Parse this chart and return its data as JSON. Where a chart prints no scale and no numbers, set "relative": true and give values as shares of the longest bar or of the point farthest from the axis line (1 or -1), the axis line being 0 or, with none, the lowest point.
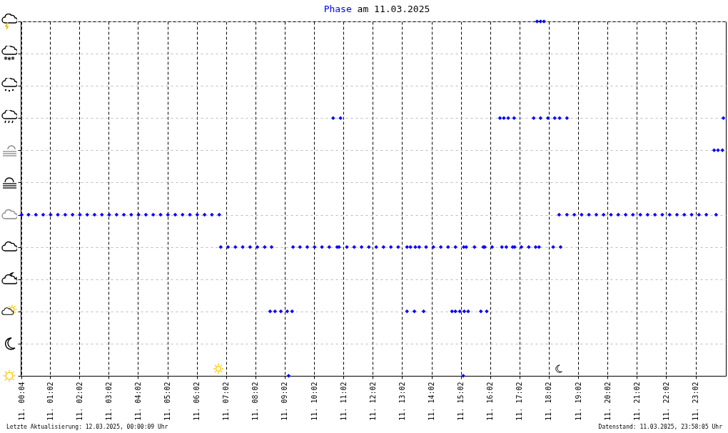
{
  "chart_data": {
    "type": "scatter",
    "title": "Phase am 11.03.2025",
    "annotations": [
      "Letzte Aktualisierung: 12.03.2025, 00:00:09 Uhr",
      "Datenstand: 11.03.2025, 23:58:05 Uhr"
    ],
    "x": [
      "2025-03-11T00:04",
      "2025-03-11T00:18",
      "2025-03-11T00:33",
      "2025-03-11T00:48",
      "2025-03-11T01:03",
      "2025-03-11T01:18",
      "2025-03-11T01:33",
      "2025-03-11T01:48",
      "2025-03-11T02:03",
      "2025-03-11T02:18",
      "2025-03-11T02:33",
      "2025-03-11T02:48",
      "2025-03-11T03:03",
      "2025-03-11T03:18",
      "2025-03-11T03:33",
      "2025-03-11T03:48",
      "2025-03-11T04:03",
      "2025-03-11T04:18",
      "2025-03-11T04:33",
      "2025-03-11T04:48",
      "2025-03-11T05:03",
      "2025-03-11T05:18",
      "2025-03-11T05:33",
      "2025-03-11T05:48",
      "2025-03-11T06:03",
      "2025-03-11T06:18",
      "2025-03-11T06:33",
      "2025-03-11T06:48",
      "2025-03-11T06:51",
      "2025-03-11T07:06",
      "2025-03-11T07:21",
      "2025-03-11T07:36",
      "2025-03-11T07:51",
      "2025-03-11T08:06",
      "2025-03-11T08:21",
      "2025-03-11T08:35",
      "2025-03-11T08:32",
      "2025-03-11T08:42",
      "2025-03-11T08:54",
      "2025-03-11T09:07",
      "2025-03-11T09:17",
      "2025-03-11T09:10",
      "2025-03-11T09:19",
      "2025-03-11T09:33",
      "2025-03-11T09:48",
      "2025-03-11T10:03",
      "2025-03-11T10:18",
      "2025-03-11T10:33",
      "2025-03-11T10:49",
      "2025-03-11T10:53",
      "2025-03-11T11:09",
      "2025-03-11T11:24",
      "2025-03-11T11:39",
      "2025-03-11T11:54",
      "2025-03-11T12:09",
      "2025-03-11T12:24",
      "2025-03-11T12:39",
      "2025-03-11T12:54",
      "2025-03-11T13:12",
      "2025-03-11T13:19",
      "2025-03-11T13:29",
      "2025-03-11T13:37",
      "2025-03-11T13:51",
      "2025-03-11T14:06",
      "2025-03-11T14:21",
      "2025-03-11T14:36",
      "2025-03-11T14:51",
      "2025-03-11T15:08",
      "2025-03-11T15:13",
      "2025-03-11T15:30",
      "2025-03-11T15:48",
      "2025-03-11T15:51",
      "2025-03-11T16:06",
      "2025-03-11T16:26",
      "2025-03-11T16:35",
      "2025-03-11T16:48",
      "2025-03-11T16:52",
      "2025-03-11T17:06",
      "2025-03-11T17:21",
      "2025-03-11T17:35",
      "2025-03-11T17:42",
      "2025-03-11T18:11",
      "2025-03-11T18:26",
      "2025-03-11T13:12",
      "2025-03-11T13:27",
      "2025-03-11T13:46",
      "2025-03-11T14:44",
      "2025-03-11T14:51",
      "2025-03-11T15:00",
      "2025-03-11T15:09",
      "2025-03-11T15:17",
      "2025-03-11T15:43",
      "2025-03-11T15:55",
      "2025-03-11T15:07",
      "2025-03-11T10:41",
      "2025-03-11T10:56",
      "2025-03-11T16:22",
      "2025-03-11T16:30",
      "2025-03-11T16:39",
      "2025-03-11T16:51",
      "2025-03-11T17:31",
      "2025-03-11T17:45",
      "2025-03-11T18:00",
      "2025-03-11T18:14",
      "2025-03-11T18:24",
      "2025-03-11T18:39",
      "2025-03-11T23:59",
      "2025-03-11T17:38",
      "2025-03-11T17:45",
      "2025-03-11T17:52",
      "2025-03-11T18:23",
      "2025-03-11T18:39",
      "2025-03-11T18:54",
      "2025-03-11T19:09",
      "2025-03-11T19:24",
      "2025-03-11T19:39",
      "2025-03-11T19:54",
      "2025-03-11T20:09",
      "2025-03-11T20:24",
      "2025-03-11T20:39",
      "2025-03-11T20:54",
      "2025-03-11T21:09",
      "2025-03-11T21:24",
      "2025-03-11T21:39",
      "2025-03-11T21:54",
      "2025-03-11T22:09",
      "2025-03-11T22:24",
      "2025-03-11T22:39",
      "2025-03-11T22:54",
      "2025-03-11T23:09",
      "2025-03-11T23:24",
      "2025-03-11T23:44",
      "2025-03-11T23:40",
      "2025-03-11T23:48",
      "2025-03-11T23:57"
    ],
    "values": [
      0.4545,
      0.4545,
      0.4545,
      0.4545,
      0.4545,
      0.4545,
      0.4545,
      0.4545,
      0.4545,
      0.4545,
      0.4545,
      0.4545,
      0.4545,
      0.4545,
      0.4545,
      0.4545,
      0.4545,
      0.4545,
      0.4545,
      0.4545,
      0.4545,
      0.4545,
      0.4545,
      0.4545,
      0.4545,
      0.4545,
      0.4545,
      0.4545,
      0.3636,
      0.3636,
      0.3636,
      0.3636,
      0.3636,
      0.3636,
      0.3636,
      0.3636,
      0.1818,
      0.1818,
      0.1818,
      0.1818,
      0.1818,
      0,
      0.3636,
      0.3636,
      0.3636,
      0.3636,
      0.3636,
      0.3636,
      0.3636,
      0.3636,
      0.3636,
      0.3636,
      0.3636,
      0.3636,
      0.3636,
      0.3636,
      0.3636,
      0.3636,
      0.3636,
      0.3636,
      0.3636,
      0.3636,
      0.3636,
      0.3636,
      0.3636,
      0.3636,
      0.3636,
      0.3636,
      0.3636,
      0.3636,
      0.3636,
      0.3636,
      0.3636,
      0.3636,
      0.3636,
      0.3636,
      0.3636,
      0.3636,
      0.3636,
      0.3636,
      0.3636,
      0.3636,
      0.3636,
      0.1818,
      0.1818,
      0.1818,
      0.1818,
      0.1818,
      0.1818,
      0.1818,
      0.1818,
      0.1818,
      0.1818,
      0,
      0.7273,
      0.7273,
      0.7273,
      0.7273,
      0.7273,
      0.7273,
      0.7273,
      0.7273,
      0.7273,
      0.7273,
      0.7273,
      0.7273,
      0.7273,
      1,
      1,
      1,
      0.4545,
      0.4545,
      0.4545,
      0.4545,
      0.4545,
      0.4545,
      0.4545,
      0.4545,
      0.4545,
      0.4545,
      0.4545,
      0.4545,
      0.4545,
      0.4545,
      0.4545,
      0.4545,
      0.4545,
      0.4545,
      0.4545,
      0.4545,
      0.4545,
      0.4545,
      0.6364,
      0.6364,
      0.6364
    ],
    "relative": true,
    "color": "#0000ff",
    "marker": "diamond",
    "xlim": [
      "2025-03-11T00:02",
      "2025-03-12T00:04"
    ],
    "xticks": [
      {
        "value": "2025-03-11T00:04",
        "label": "11. 00:04"
      },
      {
        "value": "2025-03-11T01:02",
        "label": "11. 01:02"
      },
      {
        "value": "2025-03-11T02:02",
        "label": "11. 02:02"
      },
      {
        "value": "2025-03-11T03:02",
        "label": "11. 03:02"
      },
      {
        "value": "2025-03-11T04:02",
        "label": "11. 04:02"
      },
      {
        "value": "2025-03-11T05:02",
        "label": "11. 05:02"
      },
      {
        "value": "2025-03-11T06:02",
        "label": "11. 06:02"
      },
      {
        "value": "2025-03-11T07:02",
        "label": "11. 07:02"
      },
      {
        "value": "2025-03-11T08:02",
        "label": "11. 08:02"
      },
      {
        "value": "2025-03-11T09:02",
        "label": "11. 09:02"
      },
      {
        "value": "2025-03-11T10:02",
        "label": "11. 10:02"
      },
      {
        "value": "2025-03-11T11:02",
        "label": "11. 11:02"
      },
      {
        "value": "2025-03-11T12:02",
        "label": "11. 12:02"
      },
      {
        "value": "2025-03-11T13:02",
        "label": "11. 13:02"
      },
      {
        "value": "2025-03-11T14:02",
        "label": "11. 14:02"
      },
      {
        "value": "2025-03-11T15:02",
        "label": "11. 15:02"
      },
      {
        "value": "2025-03-11T16:02",
        "label": "11. 16:02"
      },
      {
        "value": "2025-03-11T17:02",
        "label": "11. 17:02"
      },
      {
        "value": "2025-03-11T18:02",
        "label": "11. 18:02"
      },
      {
        "value": "2025-03-11T19:02",
        "label": "11. 19:02"
      },
      {
        "value": "2025-03-11T20:02",
        "label": "11. 20:02"
      },
      {
        "value": "2025-03-11T21:02",
        "label": "11. 21:02"
      },
      {
        "value": "2025-03-11T22:02",
        "label": "11. 22:02"
      },
      {
        "value": "2025-03-11T23:02",
        "label": "11. 23:02"
      }
    ],
    "tick_labels": "x",
    "grid": true
  }
}
